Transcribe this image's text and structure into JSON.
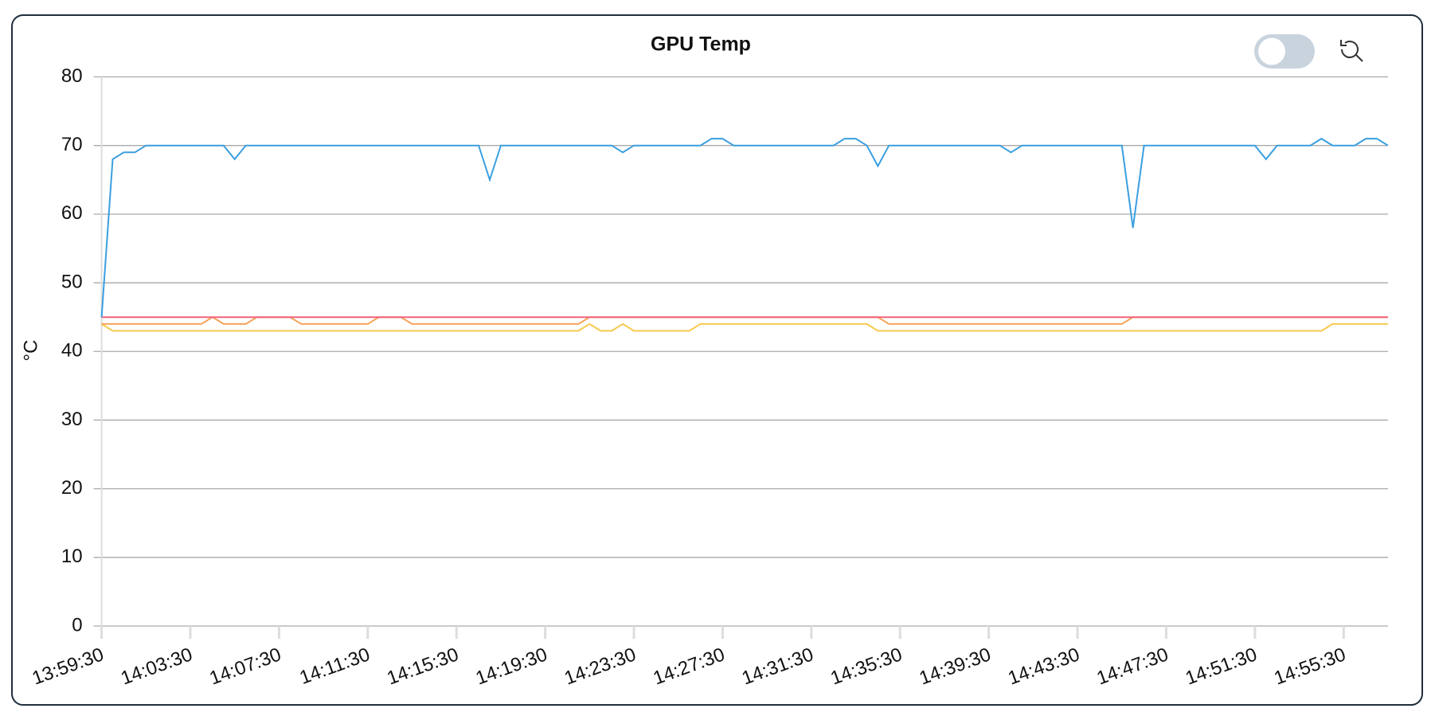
{
  "chart_data": {
    "type": "line",
    "title": "GPU Temp",
    "y_label": "°C",
    "categories": [
      "13:59:30",
      null,
      null,
      null,
      null,
      null,
      null,
      null,
      "14:03:30",
      null,
      null,
      null,
      null,
      null,
      null,
      null,
      "14:07:30",
      null,
      null,
      null,
      null,
      null,
      null,
      null,
      "14:11:30",
      null,
      null,
      null,
      null,
      null,
      null,
      null,
      "14:15:30",
      null,
      null,
      null,
      null,
      null,
      null,
      null,
      "14:19:30",
      null,
      null,
      null,
      null,
      null,
      null,
      null,
      "14:23:30",
      null,
      null,
      null,
      null,
      null,
      null,
      null,
      "14:27:30",
      null,
      null,
      null,
      null,
      null,
      null,
      null,
      "14:31:30",
      null,
      null,
      null,
      null,
      null,
      null,
      null,
      "14:35:30",
      null,
      null,
      null,
      null,
      null,
      null,
      null,
      "14:39:30",
      null,
      null,
      null,
      null,
      null,
      null,
      null,
      "14:43:30",
      null,
      null,
      null,
      null,
      null,
      null,
      null,
      "14:47:30",
      null,
      null,
      null,
      null,
      null,
      null,
      null,
      "14:51:30",
      null,
      null,
      null,
      null,
      null,
      null,
      null,
      "14:55:30",
      null,
      null,
      null,
      null
    ],
    "series": [
      {
        "color": "#3a9fe0",
        "values": [
          45,
          68,
          69,
          69,
          70,
          70,
          70,
          70,
          70,
          70,
          70,
          70,
          68,
          70,
          70,
          70,
          70,
          70,
          70,
          70,
          70,
          70,
          70,
          70,
          70,
          70,
          70,
          70,
          70,
          70,
          70,
          70,
          70,
          70,
          70,
          65,
          70,
          70,
          70,
          70,
          70,
          70,
          70,
          70,
          70,
          70,
          70,
          69,
          70,
          70,
          70,
          70,
          70,
          70,
          70,
          71,
          71,
          70,
          70,
          70,
          70,
          70,
          70,
          70,
          70,
          70,
          70,
          71,
          71,
          70,
          67,
          70,
          70,
          70,
          70,
          70,
          70,
          70,
          70,
          70,
          70,
          70,
          69,
          70,
          70,
          70,
          70,
          70,
          70,
          70,
          70,
          70,
          70,
          58,
          70,
          70,
          70,
          70,
          70,
          70,
          70,
          70,
          70,
          70,
          70,
          68,
          70,
          70,
          70,
          70,
          71,
          70,
          70,
          70,
          71,
          71,
          70
        ]
      },
      {
        "color": "#f0627c",
        "values": [
          45,
          45,
          45,
          45,
          45,
          45,
          45,
          45,
          45,
          45,
          45,
          45,
          45,
          45,
          45,
          45,
          45,
          45,
          45,
          45,
          45,
          45,
          45,
          45,
          45,
          45,
          45,
          45,
          45,
          45,
          45,
          45,
          45,
          45,
          45,
          45,
          45,
          45,
          45,
          45,
          45,
          45,
          45,
          45,
          45,
          45,
          45,
          45,
          45,
          45,
          45,
          45,
          45,
          45,
          45,
          45,
          45,
          45,
          45,
          45,
          45,
          45,
          45,
          45,
          45,
          45,
          45,
          45,
          45,
          45,
          45,
          45,
          45,
          45,
          45,
          45,
          45,
          45,
          45,
          45,
          45,
          45,
          45,
          45,
          45,
          45,
          45,
          45,
          45,
          45,
          45,
          45,
          45,
          45,
          45,
          45,
          45,
          45,
          45,
          45,
          45,
          45,
          45,
          45,
          45,
          45,
          45,
          45,
          45,
          45,
          45,
          45,
          45,
          45,
          45,
          45,
          45
        ]
      },
      {
        "color": "#f5a052",
        "values": [
          44,
          44,
          44,
          44,
          44,
          44,
          44,
          44,
          44,
          44,
          45,
          44,
          44,
          44,
          45,
          45,
          45,
          45,
          44,
          44,
          44,
          44,
          44,
          44,
          44,
          45,
          45,
          45,
          44,
          44,
          44,
          44,
          44,
          44,
          44,
          44,
          44,
          44,
          44,
          44,
          44,
          44,
          44,
          44,
          45,
          45,
          45,
          45,
          45,
          45,
          45,
          45,
          45,
          45,
          45,
          45,
          45,
          45,
          45,
          45,
          45,
          45,
          45,
          45,
          45,
          45,
          45,
          45,
          45,
          45,
          45,
          44,
          44,
          44,
          44,
          44,
          44,
          44,
          44,
          44,
          44,
          44,
          44,
          44,
          44,
          44,
          44,
          44,
          44,
          44,
          44,
          44,
          44,
          45,
          45,
          45,
          45,
          45,
          45,
          45,
          45,
          45,
          45,
          45,
          45,
          45,
          45,
          45,
          45,
          45,
          45,
          45,
          45,
          45,
          45,
          45,
          45
        ]
      },
      {
        "color": "#f7c94e",
        "values": [
          44,
          43,
          43,
          43,
          43,
          43,
          43,
          43,
          43,
          43,
          43,
          43,
          43,
          43,
          43,
          43,
          43,
          43,
          43,
          43,
          43,
          43,
          43,
          43,
          43,
          43,
          43,
          43,
          43,
          43,
          43,
          43,
          43,
          43,
          43,
          43,
          43,
          43,
          43,
          43,
          43,
          43,
          43,
          43,
          44,
          43,
          43,
          44,
          43,
          43,
          43,
          43,
          43,
          43,
          44,
          44,
          44,
          44,
          44,
          44,
          44,
          44,
          44,
          44,
          44,
          44,
          44,
          44,
          44,
          44,
          43,
          43,
          43,
          43,
          43,
          43,
          43,
          43,
          43,
          43,
          43,
          43,
          43,
          43,
          43,
          43,
          43,
          43,
          43,
          43,
          43,
          43,
          43,
          43,
          43,
          43,
          43,
          43,
          43,
          43,
          43,
          43,
          43,
          43,
          43,
          43,
          43,
          43,
          43,
          43,
          43,
          44,
          44,
          44,
          44,
          44,
          44
        ]
      }
    ],
    "ylim": [
      0,
      80
    ],
    "yticks": [
      0,
      10,
      20,
      30,
      40,
      50,
      60,
      70,
      80
    ],
    "grid": true
  }
}
